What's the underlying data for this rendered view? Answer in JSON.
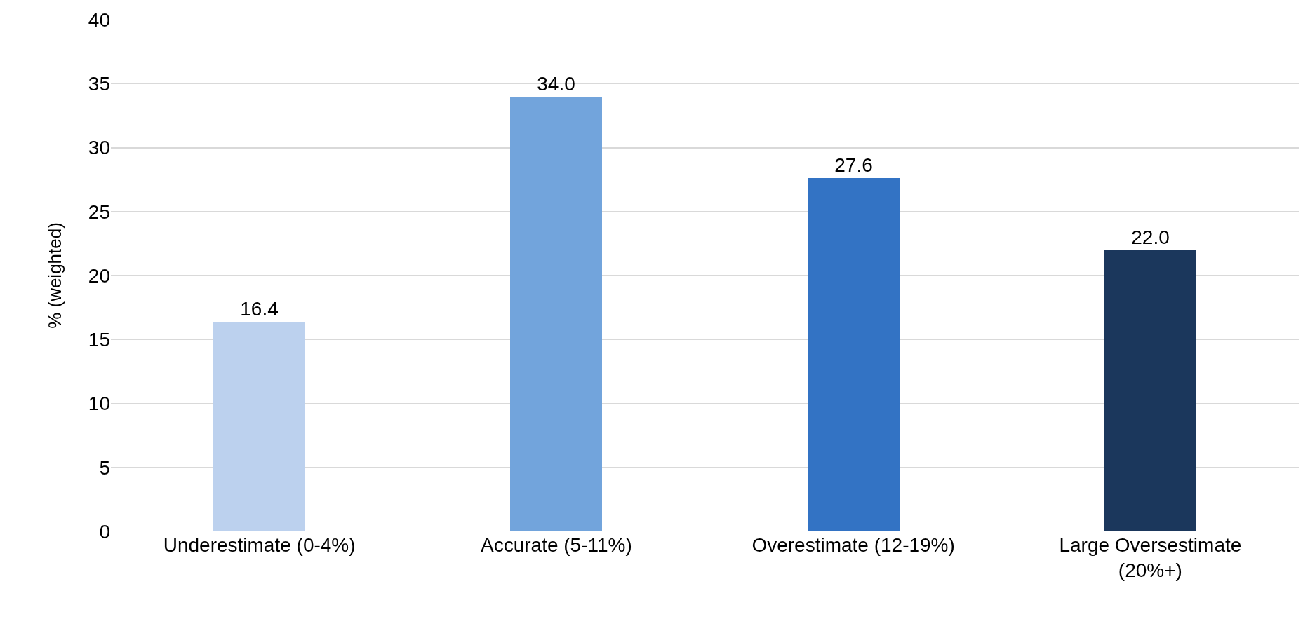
{
  "chart_data": {
    "type": "bar",
    "ylabel": "% (weighted)",
    "categories": [
      "Underestimate (0-4%)",
      "Accurate (5-11%)",
      "Overestimate (12-19%)",
      "Large Oversestimate (20%+)"
    ],
    "values": [
      16.4,
      34.0,
      27.6,
      22.0
    ],
    "colors": [
      "#bcd1ee",
      "#72a4dc",
      "#3373c4",
      "#1b375c"
    ],
    "value_labels": [
      "16.4",
      "34.0",
      "27.6",
      "22.0"
    ],
    "ylim": [
      0,
      40
    ],
    "yticks": [
      0,
      5,
      10,
      15,
      20,
      25,
      30,
      35,
      40
    ],
    "grid": "y"
  }
}
